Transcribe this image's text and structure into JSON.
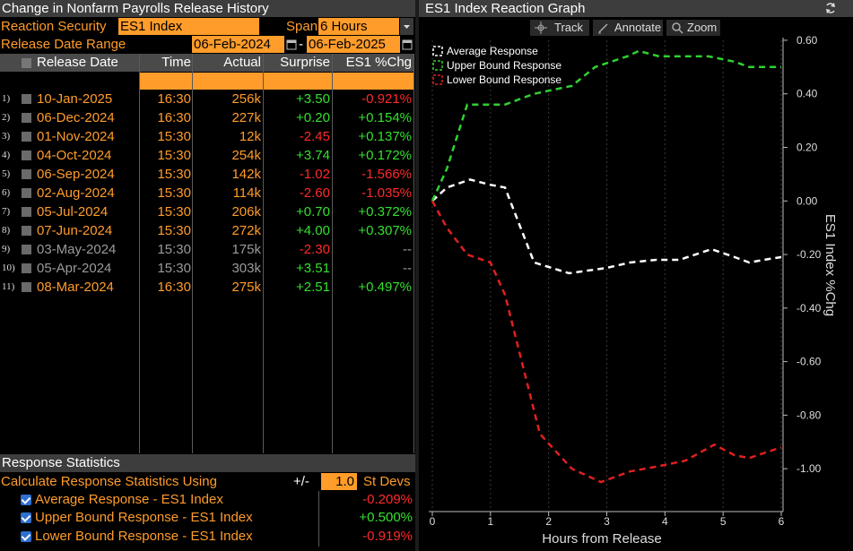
{
  "left_panel": {
    "title": "Change in Nonfarm Payrolls Release History",
    "reaction_security_label": "Reaction Security",
    "reaction_security_value": "ES1 Index",
    "span_label": "Span",
    "span_value": "6 Hours",
    "release_date_range_label": "Release Date Range",
    "date_from": "06-Feb-2024",
    "date_sep": "-",
    "date_to": "06-Feb-2025",
    "columns": [
      "Release Date",
      "Time",
      "Actual",
      "Surprise",
      "ES1 %Chg"
    ],
    "rows": [
      {
        "idx": "1)",
        "date": "10-Jan-2025",
        "time": "16:30",
        "actual": "256k",
        "surprise": "+3.50",
        "chg": "-0.921%",
        "active": true
      },
      {
        "idx": "2)",
        "date": "06-Dec-2024",
        "time": "16:30",
        "actual": "227k",
        "surprise": "+0.20",
        "chg": "+0.154%",
        "active": true
      },
      {
        "idx": "3)",
        "date": "01-Nov-2024",
        "time": "15:30",
        "actual": "12k",
        "surprise": "-2.45",
        "chg": "+0.137%",
        "active": true
      },
      {
        "idx": "4)",
        "date": "04-Oct-2024",
        "time": "15:30",
        "actual": "254k",
        "surprise": "+3.74",
        "chg": "+0.172%",
        "active": true
      },
      {
        "idx": "5)",
        "date": "06-Sep-2024",
        "time": "15:30",
        "actual": "142k",
        "surprise": "-1.02",
        "chg": "-1.566%",
        "active": true
      },
      {
        "idx": "6)",
        "date": "02-Aug-2024",
        "time": "15:30",
        "actual": "114k",
        "surprise": "-2.60",
        "chg": "-1.035%",
        "active": true
      },
      {
        "idx": "7)",
        "date": "05-Jul-2024",
        "time": "15:30",
        "actual": "206k",
        "surprise": "+0.70",
        "chg": "+0.372%",
        "active": true
      },
      {
        "idx": "8)",
        "date": "07-Jun-2024",
        "time": "15:30",
        "actual": "272k",
        "surprise": "+4.00",
        "chg": "+0.307%",
        "active": true
      },
      {
        "idx": "9)",
        "date": "03-May-2024",
        "time": "15:30",
        "actual": "175k",
        "surprise": "-2.30",
        "chg": "--",
        "active": false
      },
      {
        "idx": "10)",
        "date": "05-Apr-2024",
        "time": "15:30",
        "actual": "303k",
        "surprise": "+3.51",
        "chg": "--",
        "active": false
      },
      {
        "idx": "11)",
        "date": "08-Mar-2024",
        "time": "16:30",
        "actual": "275k",
        "surprise": "+2.51",
        "chg": "+0.497%",
        "active": true
      }
    ],
    "stats": {
      "title": "Response Statistics",
      "calc_label": "Calculate Response Statistics Using",
      "pm_label": "+/-",
      "sd_value": "1.0",
      "sd_label": "St Devs",
      "items": [
        {
          "label": "Average Response - ES1 Index",
          "value": "-0.209%"
        },
        {
          "label": "Upper Bound Response - ES1 Index",
          "value": "+0.500%"
        },
        {
          "label": "Lower Bound Response - ES1 Index",
          "value": "-0.919%"
        }
      ]
    }
  },
  "right_panel": {
    "title": "ES1 Index Reaction Graph",
    "toolbar": {
      "track": "Track",
      "annotate": "Annotate",
      "zoom": "Zoom"
    },
    "refresh_icon": "refresh-icon"
  },
  "colors": {
    "accent_orange": "#ff9c2a",
    "positive": "#34e02e",
    "negative": "#ff2a2a"
  },
  "chart_data": {
    "type": "line",
    "xlabel": "Hours from Release",
    "ylabel": "ES1 Index %Chg",
    "xlim": [
      0,
      6
    ],
    "ylim": [
      -1.15,
      0.65
    ],
    "xticks": [
      0,
      1,
      2,
      3,
      4,
      5,
      6
    ],
    "yticks": [
      0.6,
      0.4,
      0.2,
      0.0,
      -0.2,
      -0.4,
      -0.6,
      -0.8,
      -1.0
    ],
    "ytick_labels": [
      "0.60",
      "0.40",
      "0.20",
      "0.00",
      "-0.20",
      "-0.40",
      "-0.60",
      "-0.80",
      "-1.00"
    ],
    "legend_position": "top-left",
    "series": [
      {
        "name": "Average Response",
        "color": "#ffffff",
        "x": [
          0,
          0.25,
          0.65,
          1.0,
          1.25,
          1.75,
          2.35,
          3.0,
          3.4,
          3.85,
          4.25,
          4.8,
          5.2,
          5.45,
          5.7,
          6.0
        ],
        "y": [
          0.0,
          0.05,
          0.08,
          0.06,
          0.05,
          -0.23,
          -0.27,
          -0.25,
          -0.23,
          -0.22,
          -0.22,
          -0.18,
          -0.21,
          -0.23,
          -0.22,
          -0.21
        ]
      },
      {
        "name": "Upper Bound Response",
        "color": "#2fd22f",
        "x": [
          0,
          0.25,
          0.6,
          1.0,
          1.25,
          1.75,
          2.4,
          2.8,
          3.35,
          3.55,
          3.9,
          4.3,
          4.75,
          5.2,
          5.45,
          5.7,
          6.0
        ],
        "y": [
          0.0,
          0.12,
          0.36,
          0.36,
          0.36,
          0.4,
          0.43,
          0.5,
          0.54,
          0.56,
          0.54,
          0.54,
          0.54,
          0.52,
          0.5,
          0.5,
          0.5
        ]
      },
      {
        "name": "Lower Bound Response",
        "color": "#e02020",
        "x": [
          0,
          0.25,
          0.6,
          1.0,
          1.25,
          1.85,
          2.4,
          2.9,
          3.4,
          3.9,
          4.35,
          4.85,
          5.2,
          5.45,
          6.0
        ],
        "y": [
          0.0,
          -0.1,
          -0.2,
          -0.23,
          -0.35,
          -0.87,
          -1.0,
          -1.05,
          -1.01,
          -0.99,
          -0.97,
          -0.91,
          -0.95,
          -0.96,
          -0.92
        ]
      }
    ]
  }
}
